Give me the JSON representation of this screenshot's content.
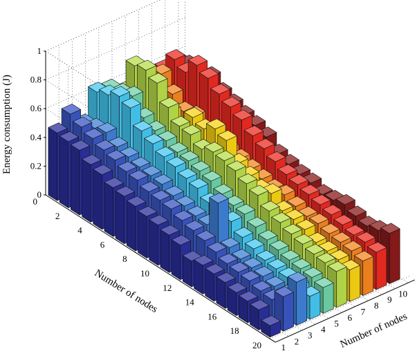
{
  "chart_data": {
    "type": "bar3d",
    "zlabel": "Energy consumption (J)",
    "xlabel": "Number of nodes",
    "ylabel": "Number of nodes",
    "zlim": [
      0,
      1
    ],
    "z_ticks": [
      "0",
      "0.2",
      "0.4",
      "0.6",
      "0.8",
      "1"
    ],
    "row_ticks": [
      "0",
      "2",
      "4",
      "6",
      "8",
      "10",
      "12",
      "14",
      "16",
      "18",
      "20"
    ],
    "column_ticks": [
      "1",
      "2",
      "3",
      "4",
      "5",
      "6",
      "7",
      "8",
      "9",
      "10"
    ],
    "grid": true,
    "columns": [
      "1",
      "2",
      "3",
      "4",
      "5",
      "6",
      "7",
      "8",
      "9",
      "10"
    ],
    "rows": [
      "1",
      "2",
      "3",
      "4",
      "5",
      "6",
      "7",
      "8",
      "9",
      "10",
      "11",
      "12",
      "13",
      "14",
      "15",
      "16",
      "17",
      "18",
      "19",
      "20"
    ],
    "column_colors": [
      "#2b2f9c",
      "#3a56c4",
      "#3f80d8",
      "#45c8f2",
      "#6fd2a8",
      "#b8dd4a",
      "#f7d414",
      "#f6861f",
      "#ee2b22",
      "#8b1a1a"
    ],
    "values": [
      [
        0.47,
        0.56,
        0.45,
        0.63,
        0.61,
        0.55,
        0.37,
        0.56,
        0.58,
        0.6
      ],
      [
        0.46,
        0.52,
        0.47,
        0.66,
        0.63,
        0.78,
        0.4,
        0.64,
        0.7,
        0.62
      ],
      [
        0.45,
        0.49,
        0.49,
        0.7,
        0.66,
        0.8,
        0.44,
        0.55,
        0.66,
        0.58
      ],
      [
        0.4,
        0.46,
        0.44,
        0.67,
        0.56,
        0.76,
        0.52,
        0.48,
        0.76,
        0.64
      ],
      [
        0.38,
        0.44,
        0.42,
        0.56,
        0.52,
        0.64,
        0.46,
        0.5,
        0.72,
        0.58
      ],
      [
        0.34,
        0.41,
        0.4,
        0.52,
        0.5,
        0.56,
        0.58,
        0.42,
        0.66,
        0.55
      ],
      [
        0.33,
        0.4,
        0.39,
        0.48,
        0.47,
        0.55,
        0.55,
        0.44,
        0.62,
        0.52
      ],
      [
        0.31,
        0.37,
        0.38,
        0.46,
        0.46,
        0.5,
        0.6,
        0.42,
        0.58,
        0.5
      ],
      [
        0.29,
        0.36,
        0.35,
        0.43,
        0.44,
        0.53,
        0.57,
        0.4,
        0.52,
        0.47
      ],
      [
        0.28,
        0.35,
        0.33,
        0.41,
        0.42,
        0.52,
        0.46,
        0.38,
        0.48,
        0.4
      ],
      [
        0.26,
        0.32,
        0.31,
        0.36,
        0.38,
        0.5,
        0.42,
        0.36,
        0.44,
        0.38
      ],
      [
        0.24,
        0.3,
        0.3,
        0.34,
        0.35,
        0.46,
        0.38,
        0.34,
        0.4,
        0.36
      ],
      [
        0.18,
        0.28,
        0.5,
        0.33,
        0.34,
        0.43,
        0.4,
        0.35,
        0.38,
        0.35
      ],
      [
        0.2,
        0.25,
        0.24,
        0.27,
        0.3,
        0.37,
        0.33,
        0.32,
        0.36,
        0.32
      ],
      [
        0.19,
        0.22,
        0.21,
        0.24,
        0.26,
        0.34,
        0.32,
        0.3,
        0.34,
        0.33
      ],
      [
        0.18,
        0.21,
        0.2,
        0.21,
        0.24,
        0.31,
        0.3,
        0.3,
        0.32,
        0.35
      ],
      [
        0.16,
        0.2,
        0.19,
        0.2,
        0.22,
        0.29,
        0.26,
        0.28,
        0.3,
        0.32
      ],
      [
        0.15,
        0.18,
        0.17,
        0.19,
        0.21,
        0.27,
        0.25,
        0.27,
        0.28,
        0.3
      ],
      [
        0.14,
        0.17,
        0.16,
        0.18,
        0.2,
        0.26,
        0.24,
        0.26,
        0.28,
        0.32
      ],
      [
        0.08,
        0.24,
        0.3,
        0.16,
        0.18,
        0.25,
        0.22,
        0.24,
        0.26,
        0.35
      ]
    ]
  }
}
